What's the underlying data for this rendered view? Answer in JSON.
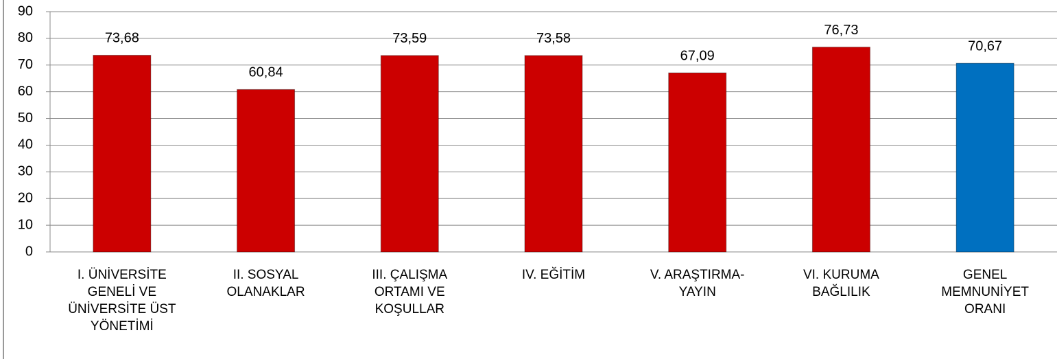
{
  "chart_data": {
    "type": "bar",
    "categories": [
      "I. ÜNİVERSİTE\nGENELİ VE\nÜNİVERSİTE ÜST\nYÖNETİMİ",
      "II. SOSYAL\nOLANAKLAR",
      "III. ÇALIŞMA\nORTAMI VE\nKOŞULLAR",
      "IV. EĞİTİM",
      "V. ARAŞTIRMA-\nYAYIN",
      "VI. KURUMA\nBAĞLILIK",
      "GENEL\nMEMNUNİYET\nORANI"
    ],
    "values": [
      73.68,
      60.84,
      73.59,
      73.58,
      67.09,
      76.73,
      70.67
    ],
    "value_labels": [
      "73,68",
      "60,84",
      "73,59",
      "73,58",
      "67,09",
      "76,73",
      "70,67"
    ],
    "colors": [
      "#cc0000",
      "#cc0000",
      "#cc0000",
      "#cc0000",
      "#cc0000",
      "#cc0000",
      "#0070c0"
    ],
    "ylim": [
      0,
      90
    ],
    "yticks": [
      0,
      10,
      20,
      30,
      40,
      50,
      60,
      70,
      80,
      90
    ],
    "grid": true
  }
}
